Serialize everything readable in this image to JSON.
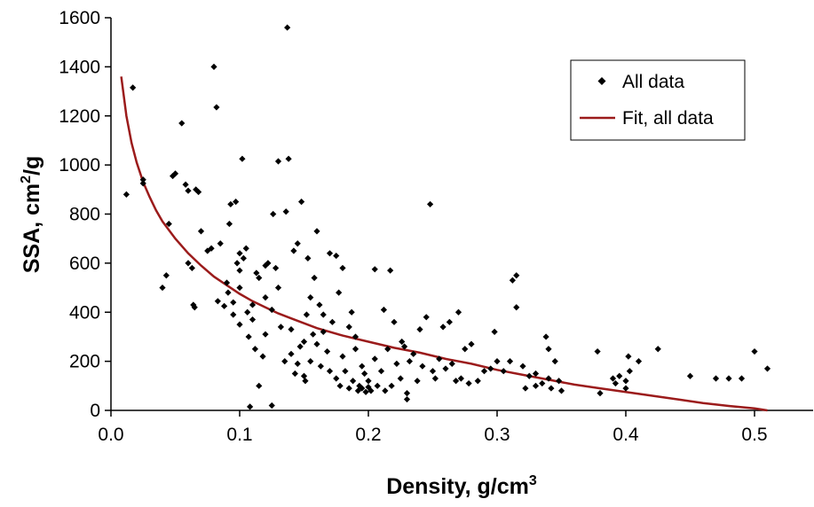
{
  "chart_data": {
    "type": "scatter",
    "xlabel": "Density, g/cm",
    "xlabel_sup": "3",
    "ylabel_main": "SSA, cm",
    "ylabel_sup": "2",
    "ylabel_tail": "/g",
    "xlim": [
      0,
      0.55
    ],
    "ylim": [
      0,
      1600
    ],
    "xticks": [
      "0.0",
      "0.1",
      "0.2",
      "0.3",
      "0.4",
      "0.5"
    ],
    "xtick_values": [
      0,
      0.1,
      0.2,
      0.3,
      0.4,
      0.5
    ],
    "yticks": [
      "0",
      "200",
      "400",
      "600",
      "800",
      "1000",
      "1200",
      "1400",
      "1600"
    ],
    "ytick_values": [
      0,
      200,
      400,
      600,
      800,
      1000,
      1200,
      1400,
      1600
    ],
    "grid": false,
    "legend_position": "top-right",
    "series": [
      {
        "name": "All data",
        "kind": "scatter",
        "marker": "diamond",
        "color": "#000000",
        "points": [
          [
            0.012,
            880
          ],
          [
            0.017,
            1315
          ],
          [
            0.025,
            940
          ],
          [
            0.025,
            925
          ],
          [
            0.04,
            500
          ],
          [
            0.043,
            550
          ],
          [
            0.045,
            760
          ],
          [
            0.048,
            955
          ],
          [
            0.05,
            965
          ],
          [
            0.055,
            1170
          ],
          [
            0.058,
            920
          ],
          [
            0.06,
            895
          ],
          [
            0.06,
            600
          ],
          [
            0.063,
            580
          ],
          [
            0.064,
            430
          ],
          [
            0.065,
            420
          ],
          [
            0.066,
            900
          ],
          [
            0.068,
            890
          ],
          [
            0.07,
            730
          ],
          [
            0.075,
            650
          ],
          [
            0.078,
            660
          ],
          [
            0.08,
            1400
          ],
          [
            0.082,
            1235
          ],
          [
            0.083,
            445
          ],
          [
            0.085,
            680
          ],
          [
            0.088,
            425
          ],
          [
            0.09,
            520
          ],
          [
            0.091,
            480
          ],
          [
            0.092,
            760
          ],
          [
            0.093,
            840
          ],
          [
            0.095,
            440
          ],
          [
            0.095,
            390
          ],
          [
            0.097,
            850
          ],
          [
            0.098,
            600
          ],
          [
            0.1,
            570
          ],
          [
            0.1,
            640
          ],
          [
            0.1,
            500
          ],
          [
            0.1,
            350
          ],
          [
            0.102,
            1025
          ],
          [
            0.103,
            620
          ],
          [
            0.105,
            660
          ],
          [
            0.106,
            400
          ],
          [
            0.107,
            300
          ],
          [
            0.108,
            15
          ],
          [
            0.11,
            430
          ],
          [
            0.11,
            370
          ],
          [
            0.112,
            250
          ],
          [
            0.113,
            560
          ],
          [
            0.115,
            540
          ],
          [
            0.115,
            100
          ],
          [
            0.118,
            220
          ],
          [
            0.12,
            460
          ],
          [
            0.12,
            310
          ],
          [
            0.12,
            590
          ],
          [
            0.122,
            600
          ],
          [
            0.125,
            410
          ],
          [
            0.125,
            20
          ],
          [
            0.126,
            800
          ],
          [
            0.128,
            580
          ],
          [
            0.13,
            1015
          ],
          [
            0.13,
            500
          ],
          [
            0.132,
            340
          ],
          [
            0.135,
            200
          ],
          [
            0.136,
            810
          ],
          [
            0.137,
            1560
          ],
          [
            0.138,
            1025
          ],
          [
            0.14,
            330
          ],
          [
            0.14,
            230
          ],
          [
            0.142,
            650
          ],
          [
            0.143,
            150
          ],
          [
            0.145,
            190
          ],
          [
            0.145,
            680
          ],
          [
            0.147,
            260
          ],
          [
            0.148,
            850
          ],
          [
            0.15,
            280
          ],
          [
            0.15,
            140
          ],
          [
            0.151,
            120
          ],
          [
            0.152,
            390
          ],
          [
            0.153,
            620
          ],
          [
            0.155,
            460
          ],
          [
            0.155,
            200
          ],
          [
            0.157,
            310
          ],
          [
            0.158,
            540
          ],
          [
            0.16,
            270
          ],
          [
            0.16,
            730
          ],
          [
            0.162,
            430
          ],
          [
            0.163,
            180
          ],
          [
            0.165,
            390
          ],
          [
            0.165,
            320
          ],
          [
            0.168,
            240
          ],
          [
            0.17,
            640
          ],
          [
            0.17,
            160
          ],
          [
            0.172,
            360
          ],
          [
            0.175,
            130
          ],
          [
            0.175,
            630
          ],
          [
            0.177,
            480
          ],
          [
            0.178,
            100
          ],
          [
            0.18,
            580
          ],
          [
            0.18,
            220
          ],
          [
            0.182,
            160
          ],
          [
            0.185,
            340
          ],
          [
            0.185,
            90
          ],
          [
            0.187,
            400
          ],
          [
            0.188,
            120
          ],
          [
            0.19,
            250
          ],
          [
            0.19,
            300
          ],
          [
            0.192,
            80
          ],
          [
            0.193,
            100
          ],
          [
            0.195,
            180
          ],
          [
            0.195,
            90
          ],
          [
            0.197,
            150
          ],
          [
            0.198,
            75
          ],
          [
            0.2,
            120
          ],
          [
            0.2,
            95
          ],
          [
            0.202,
            80
          ],
          [
            0.205,
            575
          ],
          [
            0.205,
            210
          ],
          [
            0.207,
            100
          ],
          [
            0.21,
            160
          ],
          [
            0.212,
            410
          ],
          [
            0.213,
            80
          ],
          [
            0.215,
            250
          ],
          [
            0.217,
            570
          ],
          [
            0.218,
            100
          ],
          [
            0.22,
            360
          ],
          [
            0.222,
            190
          ],
          [
            0.225,
            130
          ],
          [
            0.226,
            280
          ],
          [
            0.228,
            260
          ],
          [
            0.23,
            45
          ],
          [
            0.23,
            70
          ],
          [
            0.232,
            200
          ],
          [
            0.235,
            230
          ],
          [
            0.238,
            120
          ],
          [
            0.24,
            330
          ],
          [
            0.242,
            180
          ],
          [
            0.245,
            380
          ],
          [
            0.248,
            840
          ],
          [
            0.25,
            160
          ],
          [
            0.252,
            130
          ],
          [
            0.255,
            210
          ],
          [
            0.258,
            340
          ],
          [
            0.26,
            170
          ],
          [
            0.263,
            360
          ],
          [
            0.265,
            190
          ],
          [
            0.268,
            120
          ],
          [
            0.27,
            400
          ],
          [
            0.272,
            130
          ],
          [
            0.275,
            250
          ],
          [
            0.278,
            110
          ],
          [
            0.28,
            270
          ],
          [
            0.285,
            120
          ],
          [
            0.29,
            160
          ],
          [
            0.295,
            170
          ],
          [
            0.298,
            320
          ],
          [
            0.3,
            200
          ],
          [
            0.305,
            160
          ],
          [
            0.31,
            200
          ],
          [
            0.312,
            530
          ],
          [
            0.315,
            550
          ],
          [
            0.315,
            420
          ],
          [
            0.32,
            180
          ],
          [
            0.322,
            90
          ],
          [
            0.325,
            140
          ],
          [
            0.33,
            100
          ],
          [
            0.33,
            150
          ],
          [
            0.335,
            110
          ],
          [
            0.338,
            300
          ],
          [
            0.34,
            250
          ],
          [
            0.34,
            130
          ],
          [
            0.342,
            90
          ],
          [
            0.345,
            200
          ],
          [
            0.348,
            120
          ],
          [
            0.35,
            80
          ],
          [
            0.378,
            240
          ],
          [
            0.38,
            70
          ],
          [
            0.39,
            130
          ],
          [
            0.392,
            110
          ],
          [
            0.395,
            140
          ],
          [
            0.4,
            120
          ],
          [
            0.4,
            90
          ],
          [
            0.402,
            220
          ],
          [
            0.403,
            160
          ],
          [
            0.41,
            200
          ],
          [
            0.425,
            250
          ],
          [
            0.45,
            140
          ],
          [
            0.47,
            130
          ],
          [
            0.48,
            130
          ],
          [
            0.49,
            130
          ],
          [
            0.5,
            240
          ],
          [
            0.51,
            170
          ]
        ]
      },
      {
        "name": "Fit, all data",
        "kind": "line",
        "color": "#9b1b1b",
        "points": [
          [
            0.008,
            1360
          ],
          [
            0.012,
            1200
          ],
          [
            0.016,
            1090
          ],
          [
            0.02,
            1010
          ],
          [
            0.025,
            930
          ],
          [
            0.03,
            870
          ],
          [
            0.035,
            815
          ],
          [
            0.04,
            770
          ],
          [
            0.05,
            700
          ],
          [
            0.06,
            640
          ],
          [
            0.07,
            590
          ],
          [
            0.08,
            545
          ],
          [
            0.09,
            510
          ],
          [
            0.1,
            475
          ],
          [
            0.11,
            445
          ],
          [
            0.12,
            420
          ],
          [
            0.13,
            395
          ],
          [
            0.14,
            375
          ],
          [
            0.15,
            355
          ],
          [
            0.16,
            335
          ],
          [
            0.18,
            305
          ],
          [
            0.2,
            280
          ],
          [
            0.22,
            255
          ],
          [
            0.24,
            235
          ],
          [
            0.26,
            210
          ],
          [
            0.28,
            190
          ],
          [
            0.3,
            165
          ],
          [
            0.32,
            145
          ],
          [
            0.34,
            125
          ],
          [
            0.36,
            105
          ],
          [
            0.38,
            90
          ],
          [
            0.4,
            75
          ],
          [
            0.42,
            60
          ],
          [
            0.44,
            45
          ],
          [
            0.46,
            30
          ],
          [
            0.48,
            18
          ],
          [
            0.5,
            8
          ],
          [
            0.51,
            0
          ]
        ]
      }
    ]
  }
}
